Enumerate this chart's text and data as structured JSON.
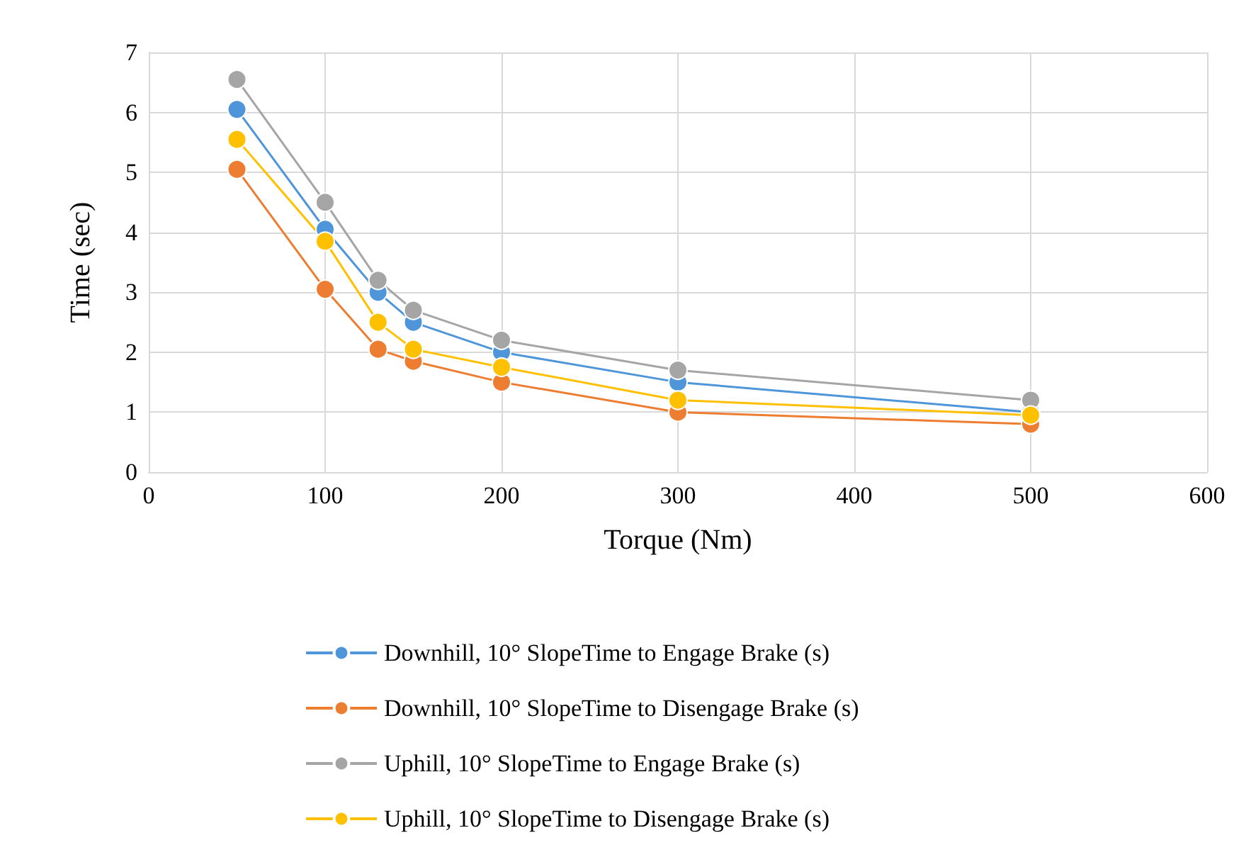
{
  "chart_data": {
    "type": "line",
    "xlabel": "Torque (Nm)",
    "ylabel": "Time (sec)",
    "x": [
      50,
      100,
      130,
      150,
      200,
      300,
      500
    ],
    "xlim": [
      0,
      600
    ],
    "xticks": [
      0,
      100,
      200,
      300,
      400,
      500,
      600
    ],
    "ylim": [
      0,
      7
    ],
    "yticks": [
      0,
      1,
      2,
      3,
      4,
      5,
      6,
      7
    ],
    "grid": true,
    "legend": "bottom",
    "marker": "circle",
    "line_style": "solid",
    "series": [
      {
        "name": "Downhill, 10° SlopeTime to Engage Brake (s)",
        "color": "#4e95d9",
        "values": [
          6.05,
          4.05,
          3.0,
          2.5,
          2.0,
          1.5,
          1.0
        ]
      },
      {
        "name": "Downhill, 10° SlopeTime to Disengage Brake (s)",
        "color": "#ed7d31",
        "values": [
          5.05,
          3.05,
          2.05,
          1.85,
          1.5,
          1.0,
          0.8
        ]
      },
      {
        "name": "Uphill, 10° SlopeTime to Engage Brake (s)",
        "color": "#a5a5a5",
        "values": [
          6.55,
          4.5,
          3.2,
          2.7,
          2.2,
          1.7,
          1.2
        ]
      },
      {
        "name": "Uphill, 10° SlopeTime to Disengage Brake (s)",
        "color": "#ffc000",
        "values": [
          5.55,
          3.85,
          2.5,
          2.05,
          1.75,
          1.2,
          0.95
        ]
      }
    ]
  }
}
